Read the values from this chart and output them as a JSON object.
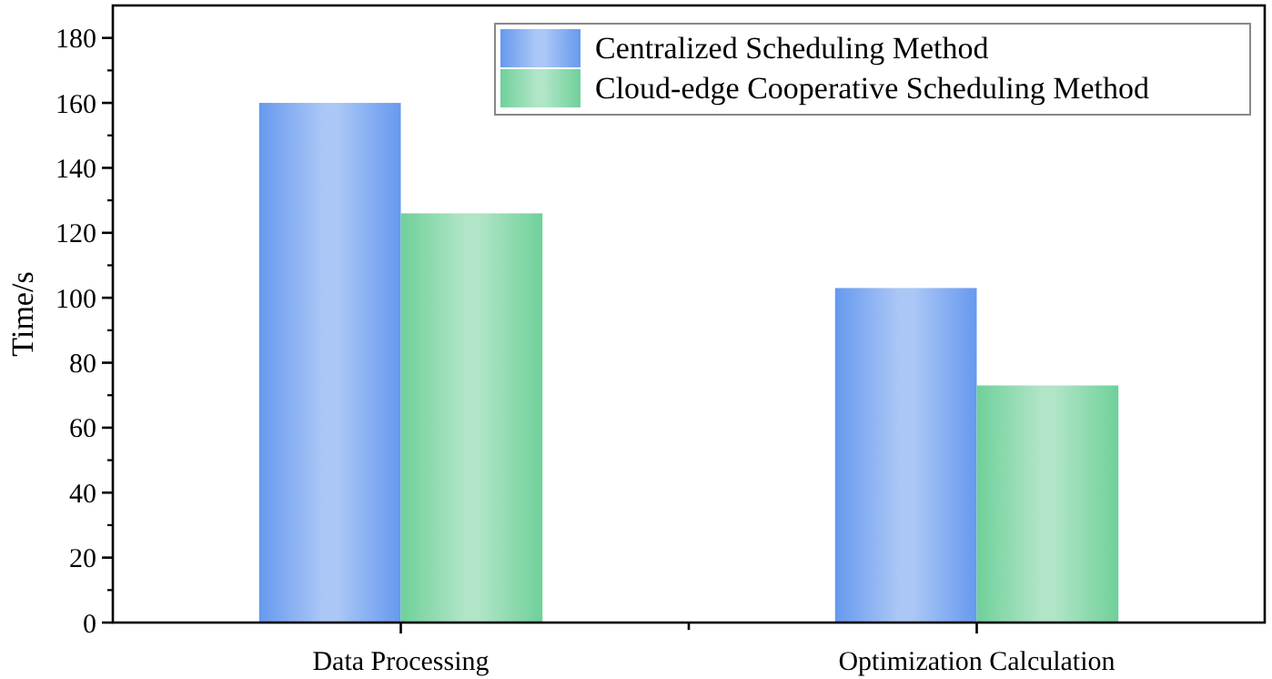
{
  "chart_data": {
    "type": "bar",
    "ylabel": "Time/s",
    "categories": [
      "Data Processing",
      "Optimization Calculation"
    ],
    "series": [
      {
        "name": "Centralized Scheduling Method",
        "color": "#6699ee",
        "values": [
          160,
          103
        ]
      },
      {
        "name": "Cloud-edge Cooperative Scheduling Method",
        "color": "#6fd09a",
        "values": [
          126,
          73
        ]
      }
    ],
    "ylim": [
      0,
      190
    ],
    "yticks": [
      0,
      20,
      40,
      60,
      80,
      100,
      120,
      140,
      160,
      180
    ],
    "grid": false,
    "legend": "top right"
  }
}
